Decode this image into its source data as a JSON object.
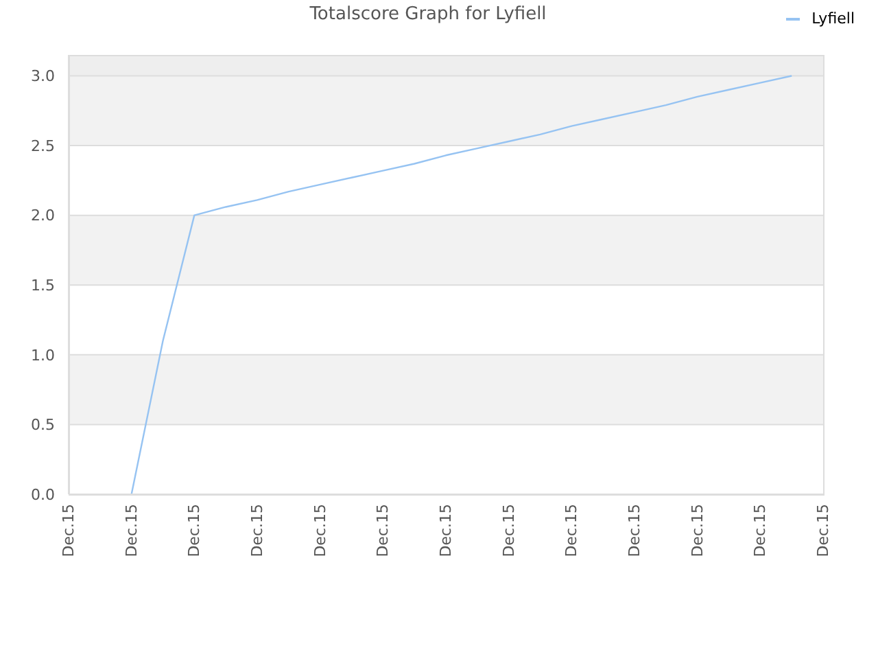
{
  "chart_data": {
    "type": "line",
    "title": "Totalscore Graph for Lyfiell",
    "categories": [
      "Dec.15",
      null,
      "Dec.15",
      null,
      "Dec.15",
      null,
      "Dec.15",
      null,
      "Dec.15",
      null,
      "Dec.15",
      null,
      "Dec.15",
      null,
      "Dec.15",
      null,
      "Dec.15",
      null,
      "Dec.15",
      null,
      "Dec.15",
      null,
      "Dec.15",
      null,
      "Dec.15"
    ],
    "series": [
      {
        "name": "Lyfiell",
        "color": "#96c3f2",
        "values": [
          null,
          null,
          0,
          1.1,
          2.0,
          2.06,
          2.11,
          2.17,
          2.22,
          2.27,
          2.32,
          2.37,
          2.43,
          2.48,
          2.53,
          2.58,
          2.64,
          2.69,
          2.74,
          2.79,
          2.85,
          2.9,
          2.95,
          3.0,
          null
        ]
      }
    ],
    "ylim": [
      0,
      3.15
    ],
    "yticks": [
      {
        "value": 0,
        "label": "0.0"
      },
      0.5,
      {
        "value": 1,
        "label": "1.0"
      },
      1.5,
      {
        "value": 2,
        "label": "2.0"
      },
      2.5,
      {
        "value": 3,
        "label": "3.0"
      }
    ],
    "grid": "y",
    "legend": "top right",
    "marker": "none",
    "line_style": "solid"
  }
}
